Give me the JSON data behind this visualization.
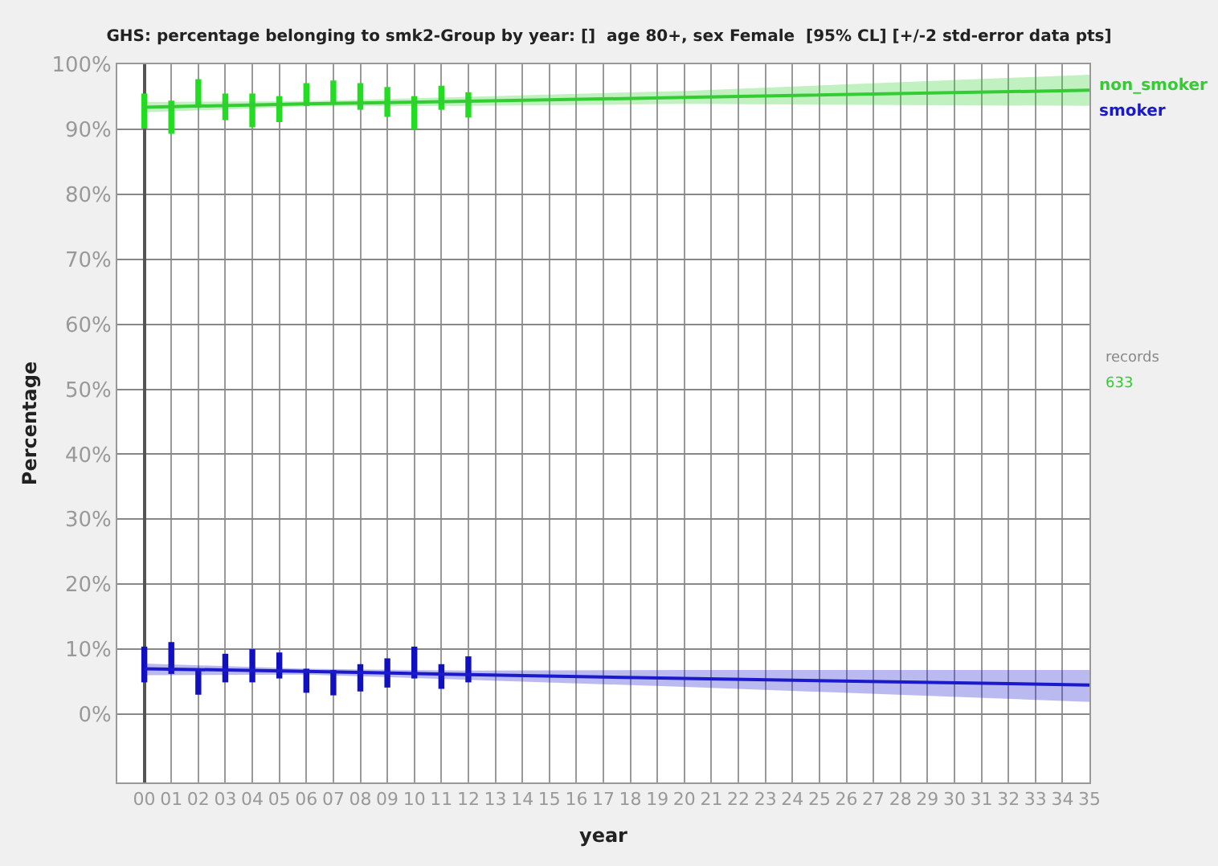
{
  "chart_data": {
    "type": "line",
    "title": "GHS: percentage belonging to smk2-Group by year: []  age 80+, sex Female  [95% CL] [+/-2 std-error data pts]",
    "xlabel": "year",
    "ylabel": "Percentage",
    "xlim": [
      -1,
      35
    ],
    "ylim": [
      -10.5,
      100
    ],
    "xticks": [
      {
        "value": 0,
        "label": "00"
      },
      {
        "value": 1,
        "label": "01"
      },
      {
        "value": 2,
        "label": "02"
      },
      {
        "value": 3,
        "label": "03"
      },
      {
        "value": 4,
        "label": "04"
      },
      {
        "value": 5,
        "label": "05"
      },
      {
        "value": 6,
        "label": "06"
      },
      {
        "value": 7,
        "label": "07"
      },
      {
        "value": 8,
        "label": "08"
      },
      {
        "value": 9,
        "label": "09"
      },
      10,
      11,
      12,
      13,
      14,
      15,
      16,
      17,
      18,
      19,
      20,
      21,
      22,
      23,
      24,
      25,
      26,
      27,
      28,
      29,
      30,
      31,
      32,
      33,
      34,
      35
    ],
    "yticks": [
      {
        "value": 0,
        "label": "0%"
      },
      {
        "value": 10,
        "label": "10%"
      },
      {
        "value": 20,
        "label": "20%"
      },
      {
        "value": 30,
        "label": "30%"
      },
      {
        "value": 40,
        "label": "40%"
      },
      {
        "value": 50,
        "label": "50%"
      },
      {
        "value": 60,
        "label": "60%"
      },
      {
        "value": 70,
        "label": "70%"
      },
      {
        "value": 80,
        "label": "80%"
      },
      {
        "value": 90,
        "label": "90%"
      },
      {
        "value": 100,
        "label": "100%"
      }
    ],
    "grid": true,
    "legend": "top right",
    "series": [
      {
        "name": "non_smoker",
        "color": "#33cc33",
        "x": [
          0,
          6,
          12,
          20,
          35
        ],
        "values": [
          93.4,
          93.9,
          94.3,
          94.9,
          96.0
        ],
        "lower": [
          92.6,
          93.5,
          93.6,
          93.9,
          93.6
        ],
        "upper": [
          94.2,
          94.3,
          95.0,
          95.9,
          98.4
        ]
      },
      {
        "name": "smoker",
        "color": "#1a1acc",
        "x": [
          0,
          6,
          12,
          20,
          35
        ],
        "values": [
          7.0,
          6.6,
          6.1,
          5.5,
          4.5
        ],
        "lower": [
          6.0,
          6.1,
          5.3,
          4.2,
          1.9
        ],
        "upper": [
          7.8,
          7.0,
          6.7,
          6.8,
          6.8
        ]
      },
      {
        "type": "bar",
        "color": "#22dd22",
        "x": [
          0,
          1,
          2,
          3,
          4,
          5,
          6,
          7,
          8,
          9,
          10,
          11,
          12
        ],
        "base": [
          90.1,
          89.3,
          93.3,
          91.4,
          90.3,
          91.1,
          93.6,
          93.8,
          93.0,
          91.9,
          90.0,
          93.0,
          91.8
        ],
        "values": [
          5.4,
          5.1,
          4.4,
          4.1,
          5.2,
          4.0,
          3.5,
          3.7,
          4.1,
          4.6,
          5.1,
          3.7,
          3.9
        ]
      },
      {
        "type": "bar",
        "color": "#1010c0",
        "x": [
          0,
          1,
          2,
          3,
          4,
          5,
          6,
          7,
          8,
          9,
          10,
          11,
          12
        ],
        "base": [
          4.9,
          6.2,
          3.0,
          4.9,
          4.9,
          5.5,
          3.3,
          2.9,
          3.5,
          4.1,
          5.5,
          3.9,
          4.9
        ],
        "values": [
          5.5,
          4.9,
          4.0,
          4.4,
          5.1,
          4.0,
          3.7,
          3.9,
          4.2,
          4.5,
          4.9,
          3.8,
          4.0
        ]
      }
    ],
    "annotations": [
      "records",
      "633"
    ]
  }
}
